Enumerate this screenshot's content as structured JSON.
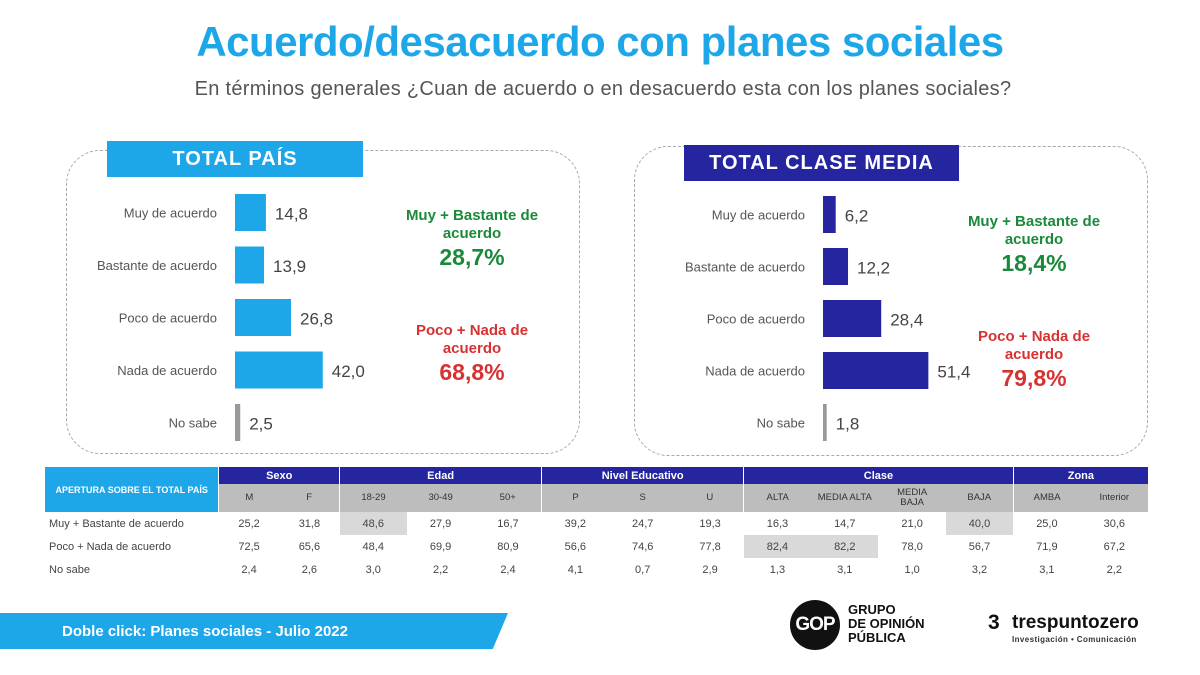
{
  "title": "Acuerdo/desacuerdo con planes sociales",
  "subtitle": "En términos generales ¿Cuan de acuerdo o en desacuerdo esta con los planes sociales?",
  "colors": {
    "title": "#1ea7e8",
    "bar_total": "#1ea7e8",
    "bar_clase_media": "#2525a0",
    "no_sabe": "#999999",
    "green": "#1a8a3a",
    "red": "#d63232"
  },
  "chart_data": [
    {
      "type": "bar",
      "orientation": "horizontal",
      "title": "TOTAL PAÍS",
      "categories": [
        "Muy de acuerdo",
        "Bastante de acuerdo",
        "Poco de acuerdo",
        "Nada de acuerdo",
        "No sabe"
      ],
      "values": [
        14.8,
        13.9,
        26.8,
        42.0,
        2.5
      ],
      "value_labels": [
        "14,8",
        "13,9",
        "26,8",
        "42,0",
        "2,5"
      ],
      "summary": [
        {
          "label": "Muy + Bastante de acuerdo",
          "value": "28,7%"
        },
        {
          "label": "Poco + Nada de acuerdo",
          "value": "68,8%"
        }
      ]
    },
    {
      "type": "bar",
      "orientation": "horizontal",
      "title": "TOTAL CLASE MEDIA",
      "categories": [
        "Muy de acuerdo",
        "Bastante de acuerdo",
        "Poco de acuerdo",
        "Nada de acuerdo",
        "No sabe"
      ],
      "values": [
        6.2,
        12.2,
        28.4,
        51.4,
        1.8
      ],
      "value_labels": [
        "6,2",
        "12,2",
        "28,4",
        "51,4",
        "1,8"
      ],
      "summary": [
        {
          "label": "Muy + Bastante de acuerdo",
          "value": "18,4%"
        },
        {
          "label": "Poco + Nada de acuerdo",
          "value": "79,8%"
        }
      ]
    },
    {
      "type": "table",
      "title": "APERTURA SOBRE EL TOTAL PAÍS",
      "groups": [
        {
          "name": "Sexo",
          "columns": [
            "M",
            "F"
          ]
        },
        {
          "name": "Edad",
          "columns": [
            "18-29",
            "30-49",
            "50+"
          ]
        },
        {
          "name": "Nivel Educativo",
          "columns": [
            "P",
            "S",
            "U"
          ]
        },
        {
          "name": "Clase",
          "columns": [
            "ALTA",
            "MEDIA ALTA",
            "MEDIA BAJA",
            "BAJA"
          ]
        },
        {
          "name": "Zona",
          "columns": [
            "AMBA",
            "Interior"
          ]
        }
      ],
      "rows": [
        {
          "label": "Muy + Bastante de acuerdo",
          "values": [
            "25,2",
            "31,8",
            "48,6",
            "27,9",
            "16,7",
            "39,2",
            "24,7",
            "19,3",
            "16,3",
            "14,7",
            "21,0",
            "40,0",
            "25,0",
            "30,6"
          ],
          "highlight": [
            2,
            11
          ]
        },
        {
          "label": "Poco + Nada de acuerdo",
          "values": [
            "72,5",
            "65,6",
            "48,4",
            "69,9",
            "80,9",
            "56,6",
            "74,6",
            "77,8",
            "82,4",
            "82,2",
            "78,0",
            "56,7",
            "71,9",
            "67,2"
          ],
          "highlight": [
            8,
            9
          ]
        },
        {
          "label": "No sabe",
          "values": [
            "2,4",
            "2,6",
            "3,0",
            "2,2",
            "2,4",
            "4,1",
            "0,7",
            "2,9",
            "1,3",
            "3,1",
            "1,0",
            "3,2",
            "3,1",
            "2,2"
          ],
          "highlight": []
        }
      ]
    }
  ],
  "footer": {
    "text": "Doble click: Planes sociales - Julio 2022",
    "gop_mark": "GOP",
    "gop_line1": "GRUPO",
    "gop_line2": "DE OPINIÓN",
    "gop_line3": "PÚBLICA",
    "tp_mark": "3",
    "tp_name": "trespuntozero",
    "tp_tagline": "Investigación • Comunicación"
  }
}
